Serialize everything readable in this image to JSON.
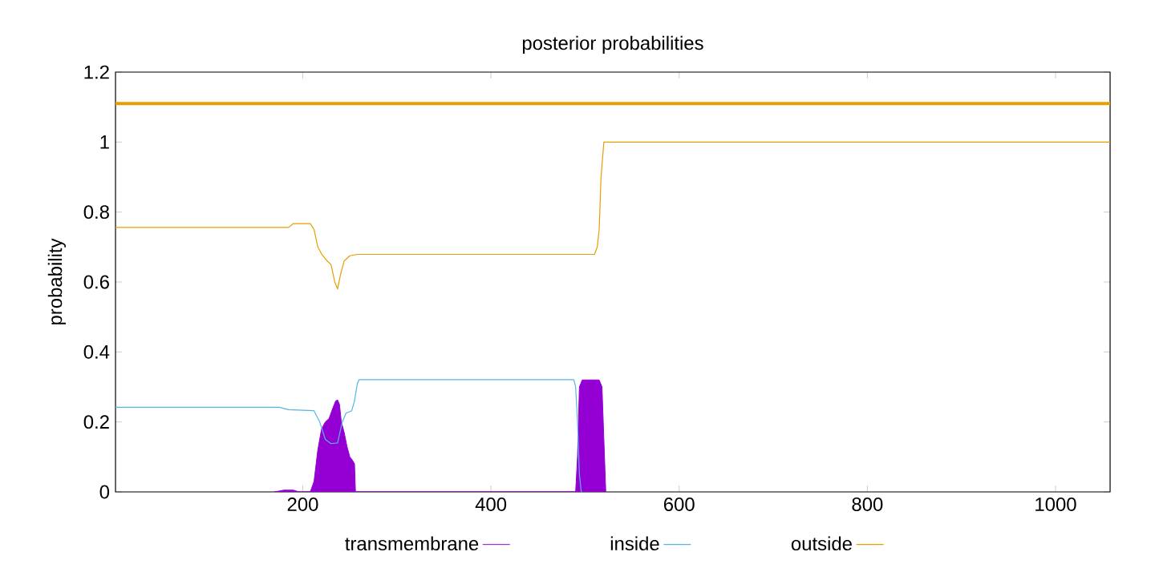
{
  "chart_data": {
    "type": "line",
    "title": "posterior probabilities",
    "ylabel": "probability",
    "xlim": [
      1,
      1058
    ],
    "ylim": [
      0,
      1.2
    ],
    "xticks": [
      200,
      400,
      600,
      800,
      1000
    ],
    "yticks": [
      0,
      0.2,
      0.4,
      0.6,
      0.8,
      1,
      1.2
    ],
    "legend": "bottom",
    "grid": false,
    "ref_lines": [
      {
        "axis": "y",
        "value": 1.11,
        "color": "#e69f00"
      }
    ],
    "series": [
      {
        "name": "transmembrane",
        "type": "area",
        "color": "#9400d3",
        "x": [
          170,
          180,
          190,
          196,
          208,
          212,
          216,
          220,
          224,
          228,
          232,
          235,
          237,
          239,
          241,
          244,
          247,
          250,
          253,
          255,
          256,
          490,
          492,
          494,
          497,
          500,
          510,
          515,
          518,
          520,
          522
        ],
        "values": [
          0,
          0.005,
          0.005,
          0,
          0,
          0.03,
          0.12,
          0.18,
          0.2,
          0.21,
          0.24,
          0.26,
          0.263,
          0.25,
          0.2,
          0.17,
          0.13,
          0.1,
          0.09,
          0.08,
          0,
          0,
          0.1,
          0.3,
          0.32,
          0.32,
          0.32,
          0.32,
          0.3,
          0.15,
          0
        ]
      },
      {
        "name": "inside",
        "color": "#56b4e9",
        "x": [
          1,
          175,
          185,
          212,
          218,
          224,
          230,
          237,
          242,
          246,
          252,
          255,
          258,
          260,
          488,
          490,
          492,
          494,
          496
        ],
        "values": [
          0.242,
          0.242,
          0.235,
          0.232,
          0.2,
          0.15,
          0.138,
          0.14,
          0.2,
          0.225,
          0.232,
          0.26,
          0.31,
          0.321,
          0.321,
          0.3,
          0.2,
          0.05,
          0
        ]
      },
      {
        "name": "outside",
        "color": "#e69f00",
        "x": [
          1,
          185,
          190,
          208,
          212,
          216,
          220,
          226,
          230,
          234,
          237,
          240,
          244,
          250,
          258,
          510,
          513,
          515,
          517,
          520,
          1058
        ],
        "values": [
          0.756,
          0.756,
          0.767,
          0.767,
          0.75,
          0.7,
          0.68,
          0.66,
          0.65,
          0.6,
          0.58,
          0.62,
          0.66,
          0.675,
          0.679,
          0.679,
          0.7,
          0.75,
          0.9,
          1.0,
          1.0
        ]
      }
    ]
  }
}
